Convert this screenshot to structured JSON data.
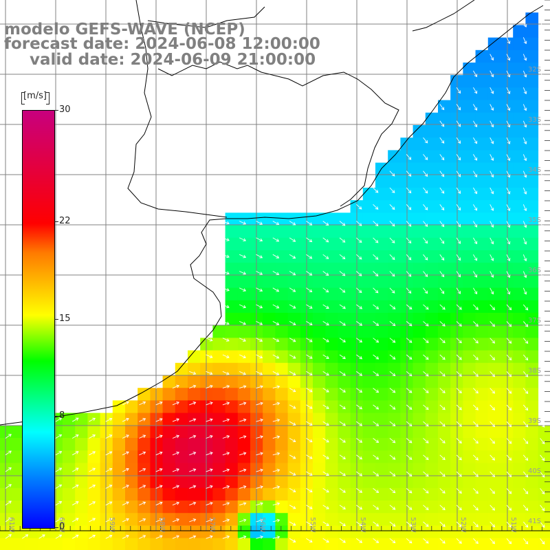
{
  "header": {
    "line1": "modelo GEFS-WAVE (NCEP)",
    "line2": "forecast date: 2024-06-08 12:00:00",
    "line3": "valid date: 2024-06-09 21:00:00"
  },
  "colorbar": {
    "unit_label": "[m/s]",
    "ticks": [
      "30",
      "22",
      "15",
      "8",
      "0"
    ],
    "tick_values": [
      30,
      22,
      15,
      8,
      0
    ],
    "min": 0,
    "max": 30,
    "colors": [
      "#0000ff",
      "#0080ff",
      "#00ffff",
      "#00ff00",
      "#ffff00",
      "#ff7a00",
      "#ff0000",
      "#c8007e"
    ]
  },
  "axes": {
    "lat_labels": [
      "32S",
      "33S",
      "34S",
      "35S",
      "36S",
      "37S",
      "38S",
      "39S",
      "40S",
      "41S"
    ],
    "lon_labels": [
      "61W",
      "60W",
      "59W",
      "58W",
      "57W",
      "56W",
      "55W",
      "54W",
      "53W",
      "52W",
      "51W"
    ]
  },
  "field": {
    "variable": "wind speed",
    "unit": "m/s",
    "land_color": "#ffffff",
    "grid_color": "#808080",
    "arrow_color": "#ffffff"
  }
}
